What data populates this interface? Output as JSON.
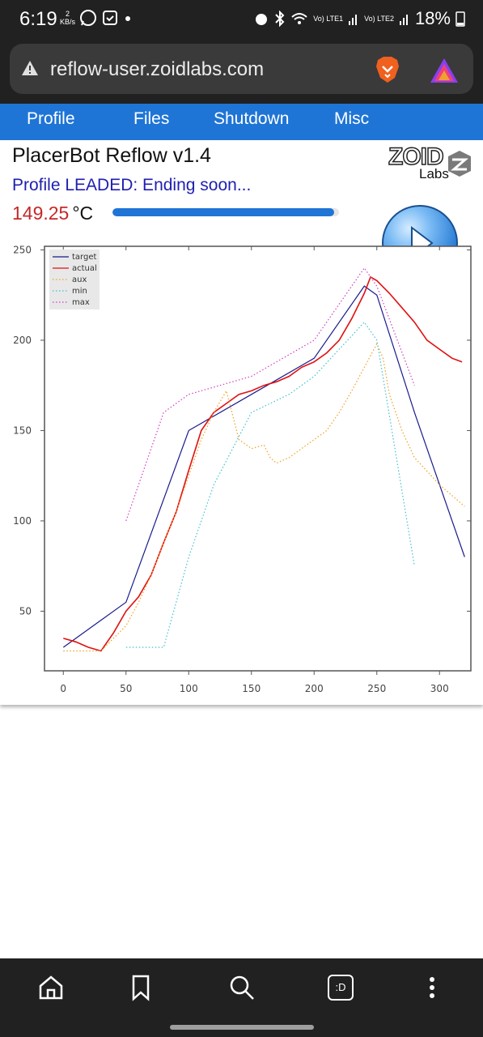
{
  "status_bar": {
    "time": "6:19",
    "net_speed_value": "2",
    "net_speed_unit": "KB/s",
    "left_icons": [
      "whatsapp-icon",
      "calendar-icon",
      "dot-icon"
    ],
    "right_icons": [
      "alarm-icon",
      "bluetooth-icon",
      "wifi-icon",
      "signal-icon",
      "signal-icon"
    ],
    "lte1": "Vo) LTE1",
    "lte2": "Vo) LTE2",
    "battery": "18%"
  },
  "browser": {
    "url": "reflow-user.zoidlabs.com",
    "warning_icon": "warning-icon",
    "brave_icon": "brave-lion-icon",
    "rewards_icon": "brave-rewards-icon"
  },
  "nav": {
    "items": [
      "Profile",
      "Files",
      "Shutdown",
      "Misc"
    ]
  },
  "page": {
    "title": "PlacerBot Reflow v1.4",
    "status": "Profile LEADED: Ending soon...",
    "temperature": "149.25",
    "temperature_unit": "°C",
    "progress": 0.98,
    "logo_top": "ZOID",
    "logo_bottom": "Labs",
    "play_icon": "play-icon"
  },
  "chart_data": {
    "type": "line",
    "xlim": [
      -15,
      325
    ],
    "ylim": [
      17,
      252
    ],
    "xticks": [
      0,
      50,
      100,
      150,
      200,
      250,
      300
    ],
    "yticks": [
      50,
      100,
      150,
      200,
      250
    ],
    "legend_position": "top-left",
    "series": [
      {
        "name": "target",
        "color": "#1a1a8c",
        "style": "solid",
        "x": [
          0,
          50,
          100,
          150,
          200,
          240,
          250,
          280,
          300,
          320
        ],
        "y": [
          30,
          55,
          150,
          170,
          190,
          230,
          225,
          160,
          120,
          80
        ]
      },
      {
        "name": "actual",
        "color": "#e01010",
        "style": "solid",
        "x": [
          0,
          10,
          20,
          30,
          40,
          50,
          60,
          70,
          80,
          90,
          100,
          110,
          120,
          130,
          140,
          150,
          160,
          170,
          180,
          190,
          200,
          210,
          220,
          230,
          240,
          245,
          250,
          260,
          270,
          280,
          290,
          300,
          310,
          318
        ],
        "y": [
          35,
          33,
          30,
          28,
          38,
          50,
          58,
          70,
          88,
          105,
          128,
          150,
          160,
          165,
          170,
          172,
          175,
          177,
          180,
          185,
          188,
          193,
          200,
          212,
          226,
          235,
          233,
          226,
          218,
          210,
          200,
          195,
          190,
          188
        ]
      },
      {
        "name": "aux",
        "color": "#f0a020",
        "style": "dotted",
        "x": [
          0,
          30,
          40,
          50,
          60,
          70,
          80,
          90,
          100,
          110,
          120,
          130,
          140,
          150,
          160,
          165,
          170,
          180,
          190,
          200,
          210,
          220,
          230,
          240,
          250,
          255,
          260,
          270,
          280,
          300,
          320
        ],
        "y": [
          28,
          28,
          35,
          42,
          55,
          70,
          88,
          105,
          125,
          145,
          160,
          172,
          145,
          140,
          142,
          135,
          132,
          135,
          140,
          145,
          150,
          160,
          172,
          185,
          198,
          190,
          170,
          150,
          135,
          120,
          108
        ]
      },
      {
        "name": "min",
        "color": "#40c0d0",
        "style": "dotted",
        "x": [
          50,
          80,
          100,
          120,
          150,
          180,
          200,
          240,
          250,
          280
        ],
        "y": [
          30,
          30,
          80,
          120,
          160,
          170,
          180,
          210,
          200,
          75
        ]
      },
      {
        "name": "max",
        "color": "#d040c0",
        "style": "dotted",
        "x": [
          50,
          80,
          100,
          150,
          200,
          240,
          250,
          280
        ],
        "y": [
          100,
          160,
          170,
          180,
          200,
          240,
          230,
          175
        ]
      }
    ]
  },
  "bottom_bar": {
    "icons": [
      "home-icon",
      "bookmark-icon",
      "search-icon",
      "tabs-icon",
      "menu-dots-icon"
    ],
    "tabs_label": ":D"
  }
}
